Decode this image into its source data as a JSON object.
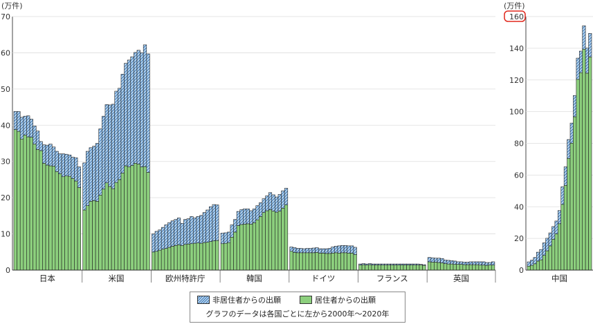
{
  "chart_data": [
    {
      "type": "bar",
      "stacked": true,
      "unit_label": "(万件)",
      "ylim": [
        0,
        70
      ],
      "yticks": [
        "0",
        "10",
        "20",
        "30",
        "40",
        "50",
        "60",
        "70"
      ],
      "years": "2000–2020",
      "groups": [
        {
          "name": "日本",
          "resident": [
            38.8,
            38.3,
            36.2,
            37.3,
            36.8,
            36.7,
            34.8,
            33.3,
            33.0,
            29.5,
            29.0,
            28.8,
            28.7,
            27.2,
            26.6,
            25.8,
            26.0,
            25.9,
            25.3,
            24.6,
            22.8
          ],
          "nonresident": [
            5.0,
            5.5,
            6.0,
            5.2,
            5.8,
            5.0,
            5.0,
            5.1,
            2.5,
            5.1,
            5.5,
            6.0,
            5.3,
            5.6,
            5.5,
            6.3,
            6.0,
            5.9,
            5.9,
            6.4,
            5.7
          ]
        },
        {
          "name": "米国",
          "resident": [
            16.6,
            17.8,
            19.0,
            19.2,
            19.0,
            20.7,
            22.4,
            24.1,
            23.1,
            22.5,
            24.2,
            25.0,
            26.8,
            28.8,
            28.5,
            28.9,
            29.5,
            29.3,
            28.5,
            28.6,
            27.0
          ],
          "nonresident": [
            13.0,
            15.0,
            14.8,
            15.0,
            16.0,
            18.3,
            20.1,
            21.6,
            22.5,
            23.3,
            25.2,
            25.2,
            27.3,
            28.3,
            29.5,
            30.0,
            30.6,
            31.4,
            31.5,
            33.6,
            32.7
          ]
        },
        {
          "name": "欧州特許庁",
          "resident": [
            5.0,
            5.2,
            5.5,
            5.8,
            6.0,
            6.3,
            6.6,
            6.8,
            7.0,
            6.8,
            7.1,
            7.2,
            7.3,
            7.4,
            7.5,
            7.4,
            7.6,
            7.7,
            7.9,
            8.1,
            8.2
          ],
          "nonresident": [
            5.0,
            5.5,
            5.6,
            6.0,
            6.5,
            6.8,
            7.0,
            7.2,
            7.4,
            6.1,
            6.9,
            7.0,
            7.5,
            7.0,
            7.3,
            7.7,
            8.3,
            8.9,
            9.6,
            10.0,
            9.8
          ]
        },
        {
          "name": "韓国",
          "resident": [
            7.3,
            7.4,
            7.6,
            9.1,
            10.5,
            12.3,
            12.6,
            12.7,
            12.8,
            12.7,
            13.1,
            13.9,
            14.8,
            15.9,
            16.4,
            16.7,
            16.3,
            16.0,
            16.3,
            17.1,
            18.0
          ],
          "nonresident": [
            2.9,
            2.9,
            2.9,
            3.4,
            3.5,
            3.9,
            4.1,
            4.2,
            4.1,
            3.7,
            3.8,
            3.9,
            3.8,
            3.8,
            4.1,
            4.7,
            4.5,
            4.2,
            4.6,
            4.8,
            4.6
          ]
        },
        {
          "name": "ドイツ",
          "resident": [
            5.2,
            4.9,
            4.8,
            4.8,
            4.8,
            4.8,
            4.8,
            4.8,
            4.9,
            4.7,
            4.7,
            4.6,
            4.6,
            4.7,
            4.8,
            4.7,
            4.8,
            4.8,
            4.7,
            4.7,
            4.3
          ],
          "nonresident": [
            1.2,
            1.3,
            1.2,
            1.2,
            1.1,
            1.2,
            1.2,
            1.3,
            1.3,
            1.2,
            1.2,
            1.3,
            1.4,
            1.7,
            1.8,
            2.0,
            2.0,
            2.0,
            2.0,
            2.0,
            2.0
          ]
        },
        {
          "name": "フランス",
          "resident": [
            1.4,
            1.5,
            1.4,
            1.5,
            1.4,
            1.4,
            1.4,
            1.4,
            1.4,
            1.4,
            1.4,
            1.4,
            1.4,
            1.4,
            1.4,
            1.4,
            1.4,
            1.4,
            1.4,
            1.4,
            1.3
          ],
          "nonresident": [
            0.3,
            0.3,
            0.3,
            0.3,
            0.3,
            0.3,
            0.3,
            0.3,
            0.3,
            0.3,
            0.3,
            0.3,
            0.3,
            0.3,
            0.3,
            0.3,
            0.3,
            0.3,
            0.3,
            0.2,
            0.2
          ]
        },
        {
          "name": "英国",
          "resident": [
            2.3,
            2.2,
            2.2,
            2.1,
            2.0,
            1.8,
            1.7,
            1.7,
            1.6,
            1.6,
            1.6,
            1.5,
            1.5,
            1.5,
            1.5,
            1.5,
            1.4,
            1.4,
            1.3,
            1.4,
            1.4
          ],
          "nonresident": [
            1.2,
            1.2,
            1.1,
            1.2,
            1.2,
            1.0,
            1.0,
            0.9,
            0.9,
            0.7,
            0.7,
            0.7,
            0.7,
            0.8,
            0.8,
            0.8,
            0.9,
            0.9,
            0.8,
            0.7,
            0.9
          ]
        }
      ]
    },
    {
      "type": "bar",
      "stacked": true,
      "unit_label": "(万件)",
      "ylim": [
        0,
        160
      ],
      "yticks": [
        "0",
        "20",
        "40",
        "60",
        "80",
        "100",
        "120",
        "140",
        "160"
      ],
      "highlight_tick": "160",
      "groups": [
        {
          "name": "中国",
          "resident": [
            2.5,
            3.0,
            4.0,
            5.7,
            6.5,
            9.3,
            12.2,
            15.3,
            19.5,
            22.9,
            29.3,
            41.5,
            53.5,
            70.5,
            80.1,
            96.8,
            120.4,
            124.6,
            139.4,
            124.3,
            134.5
          ],
          "nonresident": [
            2.7,
            3.3,
            4.0,
            5.6,
            6.5,
            7.9,
            7.9,
            8.2,
            8.0,
            8.1,
            8.3,
            11.1,
            11.7,
            11.9,
            12.7,
            13.4,
            13.4,
            13.6,
            14.8,
            15.8,
            14.9
          ]
        }
      ]
    }
  ],
  "legend": {
    "nonresident_label": "非居住者からの出願",
    "resident_label": "居住者からの出願",
    "note": "グラフのデータは各国ごとに左から2000年〜2020年"
  },
  "colors": {
    "resident": "#8ccf7d",
    "hatch_light": "#bcd8ef",
    "hatch_dark": "#3d78b8",
    "highlight": "#e0261b"
  }
}
